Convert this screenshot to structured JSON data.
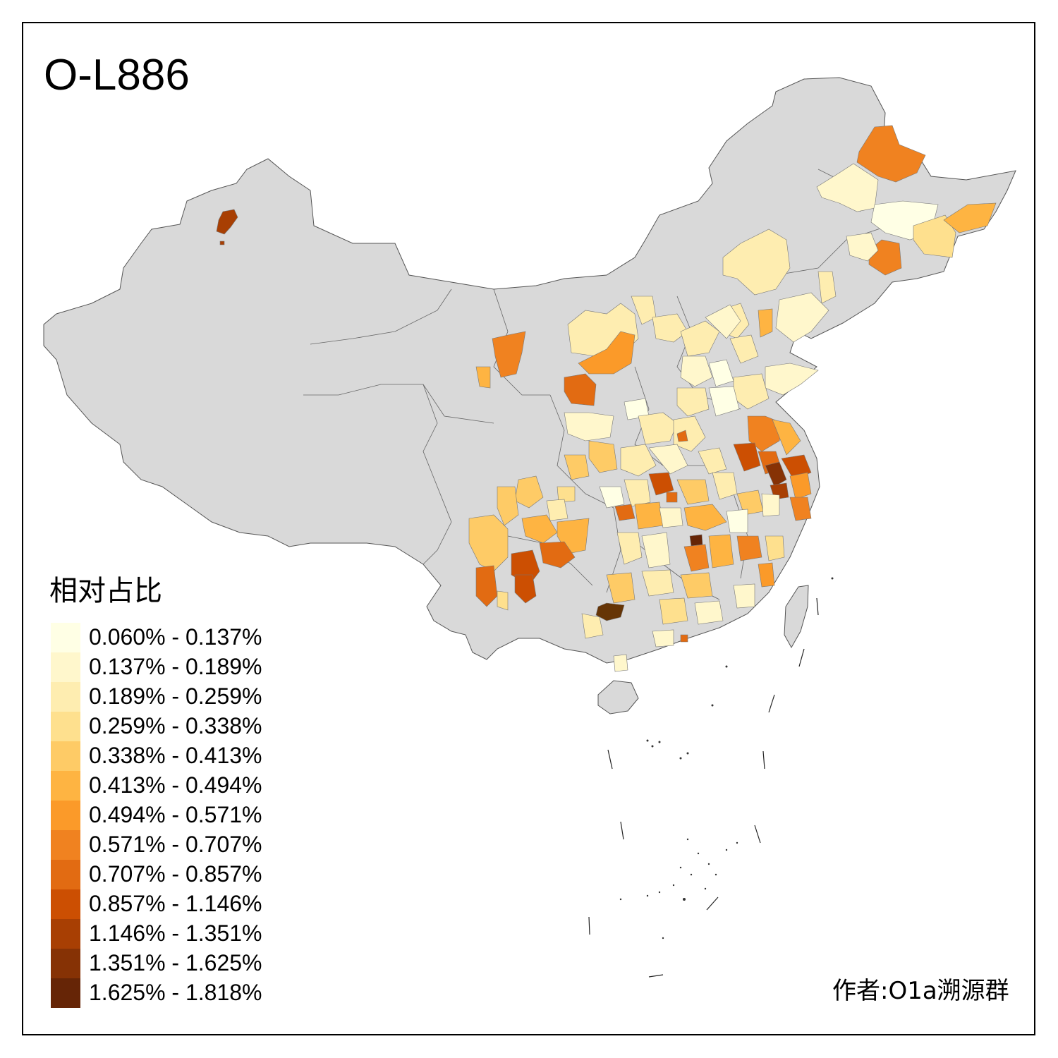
{
  "title": "O-L886",
  "legend": {
    "title": "相对占比",
    "items": [
      {
        "label": "0.060% - 0.137%",
        "color": "#FFFFE5"
      },
      {
        "label": "0.137% - 0.189%",
        "color": "#FFF7CC"
      },
      {
        "label": "0.189% - 0.259%",
        "color": "#FEEDB0"
      },
      {
        "label": "0.259% - 0.338%",
        "color": "#FEE08E"
      },
      {
        "label": "0.338% - 0.413%",
        "color": "#FECB66"
      },
      {
        "label": "0.413% - 0.494%",
        "color": "#FEB442"
      },
      {
        "label": "0.494% - 0.571%",
        "color": "#FB9A29"
      },
      {
        "label": "0.571% - 0.707%",
        "color": "#F08220"
      },
      {
        "label": "0.707% - 0.857%",
        "color": "#E26B12"
      },
      {
        "label": "0.857% - 1.146%",
        "color": "#CC4F02"
      },
      {
        "label": "1.146% - 1.351%",
        "color": "#A83F03"
      },
      {
        "label": "1.351% - 1.625%",
        "color": "#863205"
      },
      {
        "label": "1.625% - 1.818%",
        "color": "#662506"
      }
    ]
  },
  "credit": "作者:O1a溯源群",
  "colors": {
    "base": "#D9D9D9",
    "border": "#555555"
  }
}
